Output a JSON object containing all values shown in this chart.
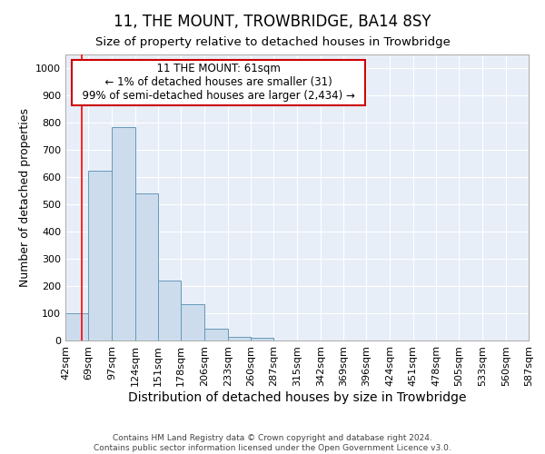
{
  "title": "11, THE MOUNT, TROWBRIDGE, BA14 8SY",
  "subtitle": "Size of property relative to detached houses in Trowbridge",
  "xlabel": "Distribution of detached houses by size in Trowbridge",
  "ylabel": "Number of detached properties",
  "footer_line1": "Contains HM Land Registry data © Crown copyright and database right 2024.",
  "footer_line2": "Contains public sector information licensed under the Open Government Licence v3.0.",
  "annotation_line1": "11 THE MOUNT: 61sqm",
  "annotation_line2": "← 1% of detached houses are smaller (31)",
  "annotation_line3": "99% of semi-detached houses are larger (2,434) →",
  "bar_edges": [
    42,
    69,
    97,
    124,
    151,
    178,
    206,
    233,
    260,
    287,
    315,
    342,
    369,
    396,
    424,
    451,
    478,
    505,
    533,
    560,
    587
  ],
  "bar_heights": [
    100,
    625,
    785,
    540,
    220,
    135,
    42,
    15,
    10,
    0,
    0,
    0,
    0,
    0,
    0,
    0,
    0,
    0,
    0,
    0
  ],
  "bar_color": "#ccdcec",
  "bar_edge_color": "#6699bb",
  "red_line_x": 61,
  "ylim": [
    0,
    1050
  ],
  "yticks": [
    0,
    100,
    200,
    300,
    400,
    500,
    600,
    700,
    800,
    900,
    1000
  ],
  "background_color": "#ffffff",
  "plot_background_color": "#e8eef8",
  "grid_color": "#ffffff",
  "title_fontsize": 12,
  "subtitle_fontsize": 9.5,
  "xlabel_fontsize": 10,
  "ylabel_fontsize": 9,
  "tick_fontsize": 8,
  "annotation_box_color": "#ffffff",
  "annotation_box_edge_color": "#cc0000",
  "annotation_fontsize": 8.5,
  "footer_fontsize": 6.5
}
